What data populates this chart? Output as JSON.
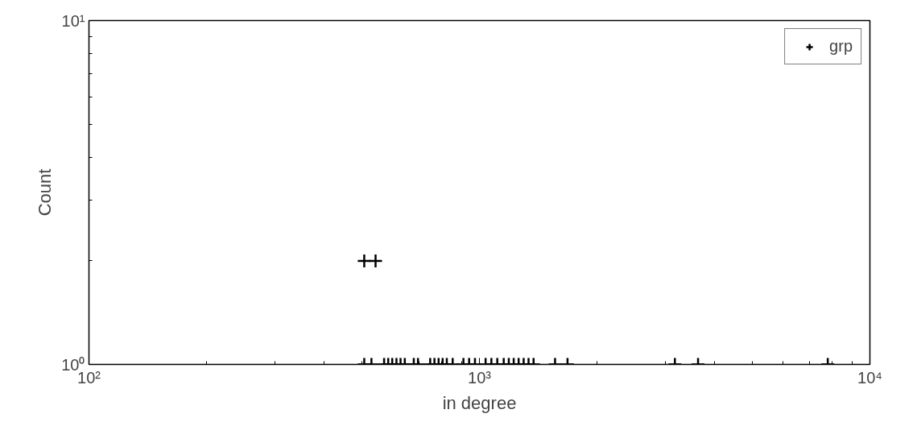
{
  "chart_data": {
    "type": "scatter",
    "xlabel": "in degree",
    "ylabel": "Count",
    "log": "xy",
    "marker": "cross",
    "legend": "top right",
    "grid": false,
    "xlim": [
      100,
      10000
    ],
    "xticks": [
      {
        "value": 100,
        "label": "10²"
      },
      {
        "value": 1000,
        "label": "10³"
      },
      {
        "value": 10000,
        "label": "10⁴"
      }
    ],
    "ylim": [
      1,
      10
    ],
    "yticks": [
      {
        "value": 1,
        "label": "10⁰"
      },
      {
        "value": 10,
        "label": "10¹"
      }
    ],
    "series": [
      {
        "name": "grp",
        "color": "#000000",
        "x": [
          507,
          542,
          507,
          529,
          570,
          584,
          598,
          613,
          628,
          644,
          679,
          696,
          748,
          767,
          786,
          805,
          825,
          854,
          910,
          941,
          974,
          1037,
          1073,
          1111,
          1154,
          1189,
          1224,
          1260,
          1298,
          1336,
          1376,
          1562,
          1681,
          3166,
          3630,
          7800
        ],
        "values": [
          2,
          2,
          1,
          1,
          1,
          1,
          1,
          1,
          1,
          1,
          1,
          1,
          1,
          1,
          1,
          1,
          1,
          1,
          1,
          1,
          1,
          1,
          1,
          1,
          1,
          1,
          1,
          1,
          1,
          1,
          1,
          1,
          1,
          1,
          1,
          1
        ]
      }
    ]
  }
}
